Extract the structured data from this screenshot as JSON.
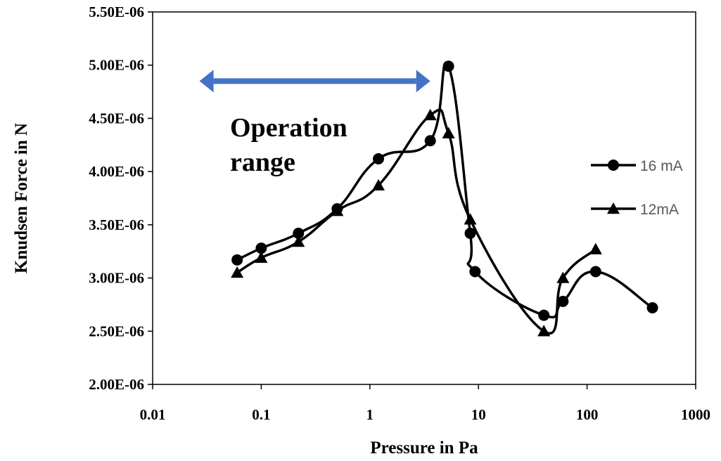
{
  "chart_data": {
    "type": "scatter",
    "xlabel": "Pressure in Pa",
    "ylabel": "Knudsen Force in N",
    "x_scale": "log",
    "xlim": [
      0.01,
      1000
    ],
    "ylim": [
      2e-06,
      5.5e-06
    ],
    "x_ticks": [
      0.01,
      0.1,
      1,
      10,
      100,
      1000
    ],
    "x_tick_labels": [
      "0.01",
      "0.1",
      "1",
      "10",
      "100",
      "1000"
    ],
    "y_ticks": [
      2e-06,
      2.5e-06,
      3e-06,
      3.5e-06,
      4e-06,
      4.5e-06,
      5e-06,
      5.5e-06
    ],
    "y_tick_labels": [
      "2.00E-06",
      "2.50E-06",
      "3.00E-06",
      "3.50E-06",
      "4.00E-06",
      "4.50E-06",
      "5.00E-06",
      "5.50E-06"
    ],
    "grid": false,
    "legend_position": "right",
    "series": [
      {
        "name": "16 mA",
        "marker": "circle",
        "color": "#000000",
        "x": [
          0.06,
          0.1,
          0.22,
          0.5,
          1.2,
          3.6,
          5.3,
          8.4,
          9.3,
          40,
          60,
          120,
          400
        ],
        "y": [
          3.17e-06,
          3.28e-06,
          3.42e-06,
          3.65e-06,
          4.12e-06,
          4.29e-06,
          4.99e-06,
          3.42e-06,
          3.06e-06,
          2.65e-06,
          2.78e-06,
          3.06e-06,
          2.72e-06
        ]
      },
      {
        "name": "12mA",
        "marker": "triangle",
        "color": "#000000",
        "x": [
          0.06,
          0.1,
          0.22,
          0.5,
          1.2,
          3.6,
          5.3,
          8.4,
          40,
          60,
          120
        ],
        "y": [
          3.05e-06,
          3.19e-06,
          3.34e-06,
          3.63e-06,
          3.87e-06,
          4.53e-06,
          4.36e-06,
          3.55e-06,
          2.5e-06,
          3e-06,
          3.27e-06
        ]
      }
    ],
    "annotations": [
      {
        "text_lines": [
          "Operation",
          "range"
        ]
      },
      {
        "type": "double-arrow",
        "color": "#4472C4",
        "x_range": [
          0.027,
          3.6
        ],
        "y": 4.85e-06
      }
    ]
  }
}
